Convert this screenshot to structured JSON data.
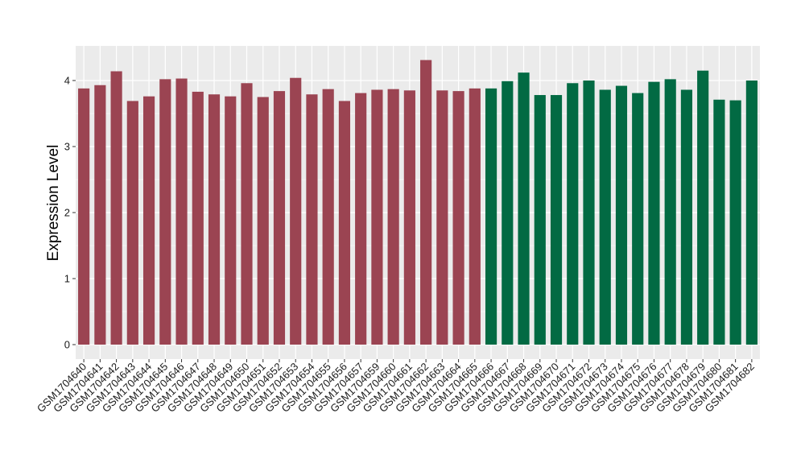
{
  "chart_data": {
    "type": "bar",
    "ylabel": "Expression Level",
    "xlabel": "",
    "ylim": [
      0,
      4.5
    ],
    "yticks": [
      "0",
      "1",
      "2",
      "3",
      "4"
    ],
    "grid": true,
    "legend": "none",
    "colors": {
      "group1": "#9B4452",
      "group2": "#026A43",
      "panel": "#EBEBEB",
      "gridline": "#FFFFFF"
    },
    "categories": [
      "GSM1704640",
      "GSM1704641",
      "GSM1704642",
      "GSM1704643",
      "GSM1704644",
      "GSM1704645",
      "GSM1704646",
      "GSM1704647",
      "GSM1704648",
      "GSM1704649",
      "GSM1704650",
      "GSM1704651",
      "GSM1704652",
      "GSM1704653",
      "GSM1704654",
      "GSM1704655",
      "GSM1704656",
      "GSM1704657",
      "GSM1704659",
      "GSM1704660",
      "GSM1704661",
      "GSM1704662",
      "GSM1704663",
      "GSM1704664",
      "GSM1704665",
      "GSM1704666",
      "GSM1704667",
      "GSM1704668",
      "GSM1704669",
      "GSM1704670",
      "GSM1704671",
      "GSM1704672",
      "GSM1704673",
      "GSM1704674",
      "GSM1704675",
      "GSM1704676",
      "GSM1704677",
      "GSM1704678",
      "GSM1704679",
      "GSM1704680",
      "GSM1704681",
      "GSM1704682"
    ],
    "values": [
      3.88,
      3.93,
      4.14,
      3.69,
      3.76,
      4.02,
      4.03,
      3.83,
      3.79,
      3.76,
      3.96,
      3.75,
      3.84,
      4.04,
      3.79,
      3.87,
      3.69,
      3.81,
      3.86,
      3.87,
      3.85,
      4.31,
      3.85,
      3.84,
      3.88,
      3.88,
      3.99,
      4.12,
      3.78,
      3.78,
      3.96,
      4.0,
      3.86,
      3.92,
      3.81,
      3.98,
      4.02,
      3.86,
      4.15,
      3.71,
      3.7,
      4.0
    ],
    "groups": [
      1,
      1,
      1,
      1,
      1,
      1,
      1,
      1,
      1,
      1,
      1,
      1,
      1,
      1,
      1,
      1,
      1,
      1,
      1,
      1,
      1,
      1,
      1,
      1,
      1,
      2,
      2,
      2,
      2,
      2,
      2,
      2,
      2,
      2,
      2,
      2,
      2,
      2,
      2,
      2,
      2,
      2
    ]
  }
}
